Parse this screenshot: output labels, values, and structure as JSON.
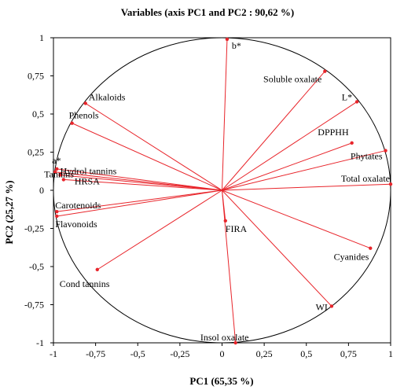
{
  "chart_data": {
    "type": "scatter",
    "title": "Variables (axis PC1 and PC2 : 90,62 %)",
    "xlabel": "PC1 (65,35 %)",
    "ylabel": "PC2 (25,27 %)",
    "xlim": [
      -1,
      1
    ],
    "ylim": [
      -1,
      1
    ],
    "xticks": [
      "-1",
      "-0,75",
      "-0,5",
      "-0,25",
      "0",
      "0,25",
      "0,5",
      "0,75",
      "1"
    ],
    "yticks": [
      "1",
      "0,75",
      "0,5",
      "0,25",
      "0",
      "-0,25",
      "-0,5",
      "-0,75",
      "-1"
    ],
    "tick_values": [
      -1,
      -0.75,
      -0.5,
      -0.25,
      0,
      0.25,
      0.5,
      0.75,
      1
    ],
    "correlation_circle": true,
    "grid": false,
    "points": [
      {
        "label": "b*",
        "x": 0.03,
        "y": 0.99
      },
      {
        "label": "Soluble oxalate",
        "x": 0.61,
        "y": 0.78
      },
      {
        "label": "L*",
        "x": 0.8,
        "y": 0.58
      },
      {
        "label": "DPPHH",
        "x": 0.77,
        "y": 0.31
      },
      {
        "label": "Phytates",
        "x": 0.97,
        "y": 0.26
      },
      {
        "label": "Total oxalate",
        "x": 1.0,
        "y": 0.04
      },
      {
        "label": "Alkaloids",
        "x": -0.81,
        "y": 0.57
      },
      {
        "label": "Phenols",
        "x": -0.89,
        "y": 0.44
      },
      {
        "label": "a*",
        "x": -0.98,
        "y": 0.14
      },
      {
        "label": "Tannins",
        "x": -0.99,
        "y": 0.12
      },
      {
        "label": "Hydrol tannins",
        "x": -0.96,
        "y": 0.1
      },
      {
        "label": "HRSA",
        "x": -0.94,
        "y": 0.07
      },
      {
        "label": "Carotenoids",
        "x": -0.98,
        "y": -0.14
      },
      {
        "label": "Flavonoids",
        "x": -0.98,
        "y": -0.17
      },
      {
        "label": "Cond tannins",
        "x": -0.74,
        "y": -0.52
      },
      {
        "label": "FIRA",
        "x": 0.02,
        "y": -0.2
      },
      {
        "label": "Cyanides",
        "x": 0.88,
        "y": -0.38
      },
      {
        "label": "WI",
        "x": 0.65,
        "y": -0.76
      },
      {
        "label": "Insol oxalate",
        "x": 0.08,
        "y": -1.0
      }
    ]
  }
}
